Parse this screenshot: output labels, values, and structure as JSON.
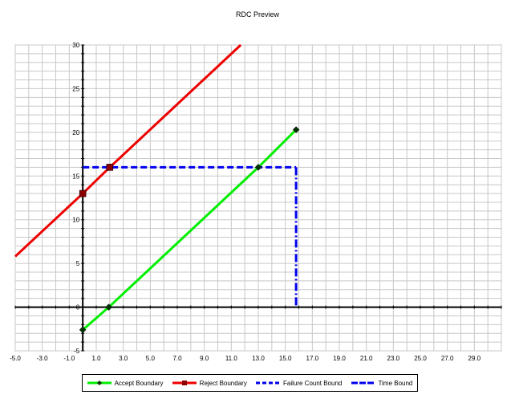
{
  "chart_data": {
    "type": "line",
    "title": "RDC Preview",
    "xlabel": "",
    "ylabel": "",
    "xlim": [
      -5,
      31
    ],
    "ylim": [
      -5,
      30
    ],
    "grid": true,
    "legend_position": "bottom",
    "x_ticks": [
      "-5.0",
      "-3.0",
      "-1.0",
      "1.0",
      "3.0",
      "5.0",
      "7.0",
      "9.0",
      "11.0",
      "13.0",
      "15.0",
      "17.0",
      "19.0",
      "21.0",
      "23.0",
      "25.0",
      "27.0",
      "29.0"
    ],
    "y_ticks": [
      "30",
      "25",
      "20",
      "15",
      "10",
      "5",
      "0",
      "-5"
    ],
    "series": [
      {
        "name": "Accept Boundary",
        "color": "#00ee00",
        "style": "solid-markers",
        "points": [
          [
            0.0,
            -2.6
          ],
          [
            1.93,
            0.0
          ],
          [
            13.0,
            16.0
          ],
          [
            15.8,
            20.3
          ]
        ]
      },
      {
        "name": "Reject Boundary",
        "color": "#ee0000",
        "style": "solid-markers",
        "points": [
          [
            -5.0,
            5.8
          ],
          [
            0.0,
            13.0
          ],
          [
            2.0,
            16.0
          ],
          [
            11.7,
            30.0
          ]
        ],
        "marker_points": [
          [
            0.0,
            13.0
          ],
          [
            2.0,
            16.0
          ]
        ]
      },
      {
        "name": "Failure Count Bound",
        "color": "#0000ee",
        "style": "dashed",
        "points": [
          [
            0.0,
            16.0
          ],
          [
            15.8,
            16.0
          ]
        ]
      },
      {
        "name": "Time Bound",
        "color": "#0000ee",
        "style": "dash-dot",
        "points": [
          [
            15.8,
            16.0
          ],
          [
            15.8,
            0.0
          ]
        ]
      }
    ]
  }
}
